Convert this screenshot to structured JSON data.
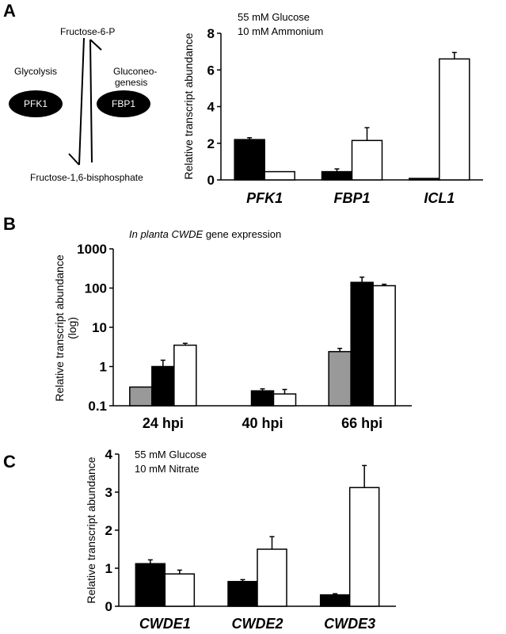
{
  "panels": {
    "a": {
      "letter": "A"
    },
    "b": {
      "letter": "B"
    },
    "c": {
      "letter": "C"
    }
  },
  "diagram": {
    "top": "Fructose-6-P",
    "bottom": "Fructose-1,6-bisphosphate",
    "left_label": "Glycolysis",
    "right_label_line1": "Gluconeo-",
    "right_label_line2": "genesis",
    "enzyme_left": "PFK1",
    "enzyme_right": "FBP1"
  },
  "chart_data": [
    {
      "id": "A",
      "type": "bar",
      "categories": [
        "PFK1",
        "FBP1",
        "ICL1"
      ],
      "category_style": "italic",
      "series": [
        {
          "color": "#000000",
          "values": [
            2.2,
            0.45,
            0.08
          ],
          "errors": [
            0.1,
            0.15,
            0.0
          ]
        },
        {
          "color": "#ffffff",
          "values": [
            0.45,
            2.15,
            6.6
          ],
          "errors": [
            0.0,
            0.7,
            0.35
          ]
        }
      ],
      "ylabel": "Relative transcript abundance",
      "ylim": [
        0,
        8
      ],
      "yticks": [
        0,
        2,
        4,
        6,
        8
      ],
      "annotation": [
        "55 mM Glucose",
        "10 mM Ammonium"
      ],
      "grid": false
    },
    {
      "id": "B",
      "type": "bar",
      "scale": "log",
      "title_italic": "In planta CWDE",
      "title_rest": " gene expression",
      "categories": [
        "24 hpi",
        "40 hpi",
        "66 hpi"
      ],
      "category_style": "normal",
      "series": [
        {
          "color": "#999999",
          "values": [
            0.3,
            null,
            2.4
          ],
          "errors": [
            0,
            0,
            0.5
          ]
        },
        {
          "color": "#000000",
          "values": [
            1.0,
            0.24,
            140
          ],
          "errors": [
            0.45,
            0.03,
            50
          ]
        },
        {
          "color": "#ffffff",
          "values": [
            3.5,
            0.2,
            115
          ],
          "errors": [
            0.4,
            0.06,
            10
          ]
        }
      ],
      "ylabel": [
        "Relative transcript abundance",
        "(log)"
      ],
      "ylim": [
        0.1,
        1000
      ],
      "yticks": [
        "0.1",
        "1",
        "10",
        "100",
        "1000"
      ],
      "grid": false
    },
    {
      "id": "C",
      "type": "bar",
      "categories": [
        "CWDE1",
        "CWDE2",
        "CWDE3"
      ],
      "category_style": "italic",
      "series": [
        {
          "color": "#000000",
          "values": [
            1.12,
            0.65,
            0.3
          ],
          "errors": [
            0.1,
            0.05,
            0.03
          ]
        },
        {
          "color": "#ffffff",
          "values": [
            0.85,
            1.5,
            3.12
          ],
          "errors": [
            0.1,
            0.33,
            0.58
          ]
        }
      ],
      "ylabel": "Relative transcript abundance",
      "ylim": [
        0,
        4
      ],
      "yticks": [
        0,
        1,
        2,
        3,
        4
      ],
      "annotation": [
        "55 mM Glucose",
        "10 mM Nitrate"
      ],
      "grid": false
    }
  ]
}
